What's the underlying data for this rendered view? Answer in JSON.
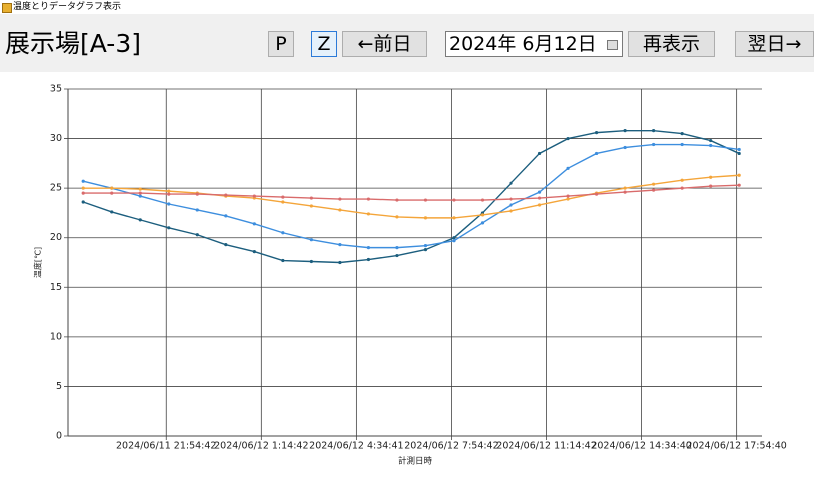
{
  "window": {
    "title": "温度とりデータグラフ表示"
  },
  "toolbar": {
    "location": "展示場[A-3]",
    "buttons": [
      "P",
      "Z",
      "←前日",
      "再表示",
      "翌日→"
    ],
    "date": "2024年  6月12日"
  },
  "chart_data": {
    "type": "line",
    "ylabel": "温度[℃]",
    "xlabel": "計測日時",
    "x": [
      "2024/06/11 19:00",
      "2024/06/11 20:00",
      "2024/06/11 21:00",
      "2024/06/11 22:00",
      "2024/06/11 23:00",
      "2024/06/12 0:00",
      "2024/06/12 1:00",
      "2024/06/12 2:00",
      "2024/06/12 3:00",
      "2024/06/12 4:00",
      "2024/06/12 5:00",
      "2024/06/12 6:00",
      "2024/06/12 7:00",
      "2024/06/12 8:00",
      "2024/06/12 9:00",
      "2024/06/12 10:00",
      "2024/06/12 11:00",
      "2024/06/12 12:00",
      "2024/06/12 13:00",
      "2024/06/12 14:00",
      "2024/06/12 15:00",
      "2024/06/12 16:00",
      "2024/06/12 17:00",
      "2024/06/12 18:00"
    ],
    "series": [
      {
        "color": "#1c5e7e",
        "values": [
          23.6,
          22.6,
          21.8,
          21.0,
          20.3,
          19.3,
          18.6,
          17.7,
          17.6,
          17.5,
          17.8,
          18.2,
          18.8,
          20.0,
          22.5,
          25.5,
          28.5,
          30.0,
          30.6,
          30.8,
          30.8,
          30.5,
          29.8,
          28.5
        ]
      },
      {
        "color": "#3d8ede",
        "values": [
          25.7,
          25.0,
          24.2,
          23.4,
          22.8,
          22.2,
          21.4,
          20.5,
          19.8,
          19.3,
          19.0,
          19.0,
          19.2,
          19.7,
          21.5,
          23.3,
          24.6,
          27.0,
          28.5,
          29.1,
          29.4,
          29.4,
          29.3,
          28.9
        ]
      },
      {
        "color": "#f4a53a",
        "values": [
          25.0,
          25.0,
          24.9,
          24.7,
          24.5,
          24.2,
          24.0,
          23.6,
          23.2,
          22.8,
          22.4,
          22.1,
          22.0,
          22.0,
          22.3,
          22.7,
          23.3,
          23.9,
          24.5,
          25.0,
          25.4,
          25.8,
          26.1,
          26.3
        ]
      },
      {
        "color": "#d96b6b",
        "values": [
          24.5,
          24.5,
          24.5,
          24.4,
          24.4,
          24.3,
          24.2,
          24.1,
          24.0,
          23.9,
          23.9,
          23.8,
          23.8,
          23.8,
          23.8,
          23.9,
          24.0,
          24.2,
          24.4,
          24.6,
          24.8,
          25.0,
          25.2,
          25.3
        ]
      }
    ],
    "xlim": [
      "2024/06/11 18:28",
      "2024/06/12 18:48"
    ],
    "xticks": [
      "2024/06/11 21:54:42",
      "2024/06/12 1:14:42",
      "2024/06/12 4:34:41",
      "2024/06/12 7:54:42",
      "2024/06/12 11:14:42",
      "2024/06/12 14:34:40",
      "2024/06/12 17:54:40"
    ],
    "ylim": [
      0,
      35
    ],
    "yticks": [
      0,
      5,
      10,
      15,
      20,
      25,
      30,
      35
    ],
    "grid": true
  }
}
